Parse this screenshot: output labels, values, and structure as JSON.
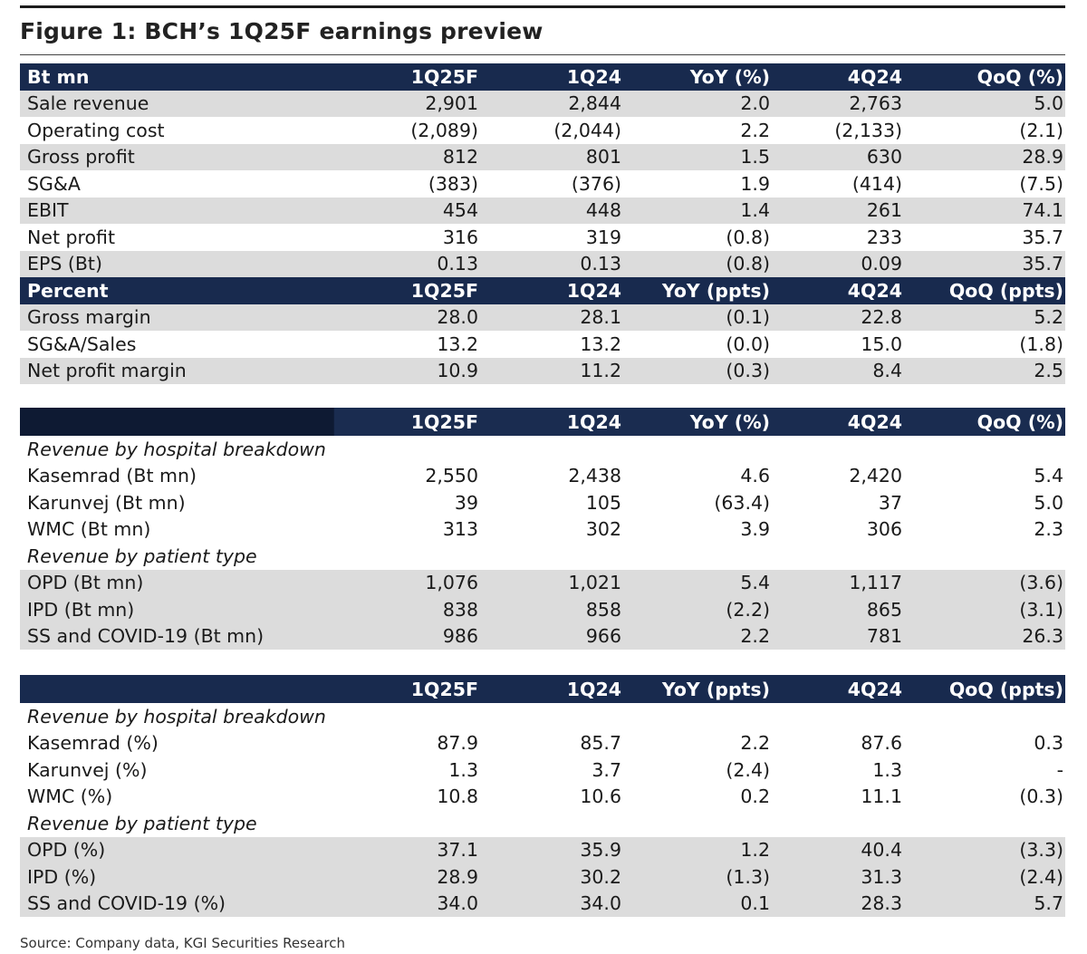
{
  "title": "Figure 1: BCH’s 1Q25F earnings preview",
  "table1": {
    "header": [
      "Bt mn",
      "1Q25F",
      "1Q24",
      "YoY (%)",
      "4Q24",
      "QoQ (%)"
    ],
    "rows": [
      [
        "Sale revenue",
        "2,901",
        "2,844",
        "2.0",
        "2,763",
        "5.0"
      ],
      [
        "Operating cost",
        "(2,089)",
        "(2,044)",
        "2.2",
        "(2,133)",
        "(2.1)"
      ],
      [
        "Gross profit",
        "812",
        "801",
        "1.5",
        "630",
        "28.9"
      ],
      [
        "SG&A",
        "(383)",
        "(376)",
        "1.9",
        "(414)",
        "(7.5)"
      ],
      [
        "EBIT",
        "454",
        "448",
        "1.4",
        "261",
        "74.1"
      ],
      [
        "Net profit",
        "316",
        "319",
        "(0.8)",
        "233",
        "35.7"
      ],
      [
        "EPS (Bt)",
        "0.13",
        "0.13",
        "(0.8)",
        "0.09",
        "35.7"
      ]
    ],
    "header2": [
      "Percent",
      "1Q25F",
      "1Q24",
      "YoY (ppts)",
      "4Q24",
      "QoQ (ppts)"
    ],
    "rows2": [
      [
        "Gross margin",
        "28.0",
        "28.1",
        "(0.1)",
        "22.8",
        "5.2"
      ],
      [
        "SG&A/Sales",
        "13.2",
        "13.2",
        "(0.0)",
        "15.0",
        "(1.8)"
      ],
      [
        "Net profit margin",
        "10.9",
        "11.2",
        "(0.3)",
        "8.4",
        "2.5"
      ]
    ]
  },
  "table2": {
    "header": [
      "",
      "1Q25F",
      "1Q24",
      "YoY (%)",
      "4Q24",
      "QoQ (%)"
    ],
    "sub1": "Revenue by hospital breakdown",
    "rows1": [
      [
        "Kasemrad (Bt mn)",
        "2,550",
        "2,438",
        "4.6",
        "2,420",
        "5.4"
      ],
      [
        "Karunvej (Bt mn)",
        "39",
        "105",
        "(63.4)",
        "37",
        "5.0"
      ],
      [
        "WMC (Bt mn)",
        "313",
        "302",
        "3.9",
        "306",
        "2.3"
      ]
    ],
    "sub2": "Revenue by patient type",
    "rows2": [
      [
        "OPD (Bt mn)",
        "1,076",
        "1,021",
        "5.4",
        "1,117",
        "(3.6)"
      ],
      [
        "IPD (Bt mn)",
        "838",
        "858",
        "(2.2)",
        "865",
        "(3.1)"
      ],
      [
        "SS and COVID-19 (Bt mn)",
        "986",
        "966",
        "2.2",
        "781",
        "26.3"
      ]
    ]
  },
  "table3": {
    "header": [
      "",
      "1Q25F",
      "1Q24",
      "YoY (ppts)",
      "4Q24",
      "QoQ (ppts)"
    ],
    "sub1": "Revenue by hospital breakdown",
    "rows1": [
      [
        "Kasemrad (%)",
        "87.9",
        "85.7",
        "2.2",
        "87.6",
        "0.3"
      ],
      [
        "Karunvej (%)",
        "1.3",
        "3.7",
        "(2.4)",
        "1.3",
        "-"
      ],
      [
        "WMC (%)",
        "10.8",
        "10.6",
        "0.2",
        "11.1",
        "(0.3)"
      ]
    ],
    "sub2": "Revenue by patient type",
    "rows2": [
      [
        "OPD (%)",
        "37.1",
        "35.9",
        "1.2",
        "40.4",
        "(3.3)"
      ],
      [
        "IPD (%)",
        "28.9",
        "30.2",
        "(1.3)",
        "31.3",
        "(2.4)"
      ],
      [
        "SS and COVID-19 (%)",
        "34.0",
        "34.0",
        "0.1",
        "28.3",
        "5.7"
      ]
    ]
  },
  "source": "Source: Company data, KGI Securities Research"
}
